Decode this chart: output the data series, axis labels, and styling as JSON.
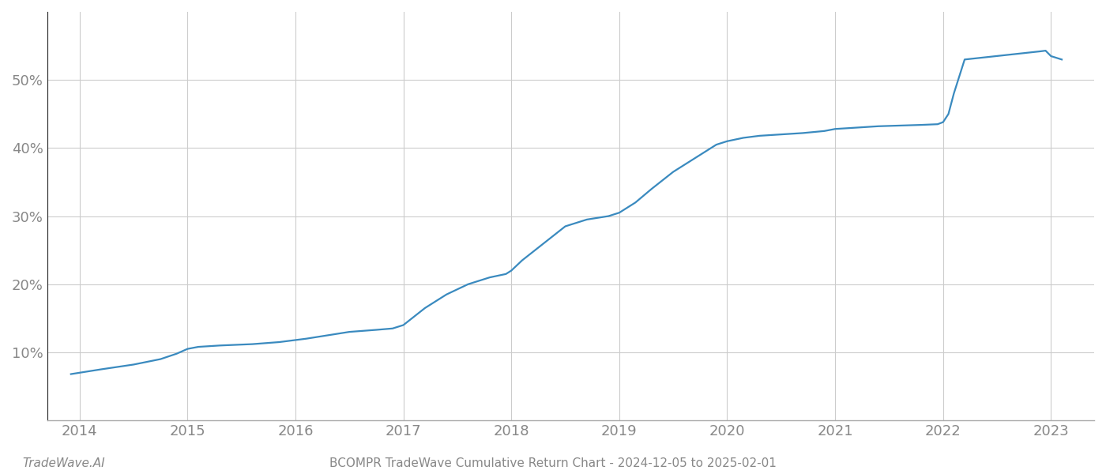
{
  "title": "BCOMPR TradeWave Cumulative Return Chart - 2024-12-05 to 2025-02-01",
  "footer_left": "TradeWave.AI",
  "line_color": "#3a8abf",
  "background_color": "#ffffff",
  "grid_color": "#cccccc",
  "x_years": [
    2014,
    2015,
    2016,
    2017,
    2018,
    2019,
    2020,
    2021,
    2022,
    2023
  ],
  "data_x": [
    2013.92,
    2014.0,
    2014.2,
    2014.5,
    2014.75,
    2014.9,
    2015.0,
    2015.1,
    2015.3,
    2015.6,
    2015.85,
    2016.0,
    2016.1,
    2016.3,
    2016.5,
    2016.75,
    2016.9,
    2017.0,
    2017.2,
    2017.4,
    2017.6,
    2017.8,
    2017.95,
    2018.0,
    2018.1,
    2018.3,
    2018.5,
    2018.7,
    2018.9,
    2019.0,
    2019.15,
    2019.3,
    2019.5,
    2019.7,
    2019.9,
    2020.0,
    2020.15,
    2020.3,
    2020.5,
    2020.7,
    2020.9,
    2021.0,
    2021.2,
    2021.4,
    2021.6,
    2021.8,
    2021.95,
    2022.0,
    2022.05,
    2022.1,
    2022.2,
    2022.9,
    2022.95,
    2023.0,
    2023.1
  ],
  "data_y": [
    6.8,
    7.0,
    7.5,
    8.2,
    9.0,
    9.8,
    10.5,
    10.8,
    11.0,
    11.2,
    11.5,
    11.8,
    12.0,
    12.5,
    13.0,
    13.3,
    13.5,
    14.0,
    16.5,
    18.5,
    20.0,
    21.0,
    21.5,
    22.0,
    23.5,
    26.0,
    28.5,
    29.5,
    30.0,
    30.5,
    32.0,
    34.0,
    36.5,
    38.5,
    40.5,
    41.0,
    41.5,
    41.8,
    42.0,
    42.2,
    42.5,
    42.8,
    43.0,
    43.2,
    43.3,
    43.4,
    43.5,
    43.8,
    45.0,
    48.0,
    53.0,
    54.2,
    54.3,
    53.5,
    53.0
  ],
  "ylim": [
    0,
    60
  ],
  "yticks": [
    10,
    20,
    30,
    40,
    50
  ],
  "xlim": [
    2013.7,
    2023.4
  ],
  "line_width": 1.6,
  "title_fontsize": 11,
  "tick_label_color": "#888888",
  "tick_fontsize": 13,
  "spine_color": "#aaaaaa",
  "left_spine_color": "#222222"
}
